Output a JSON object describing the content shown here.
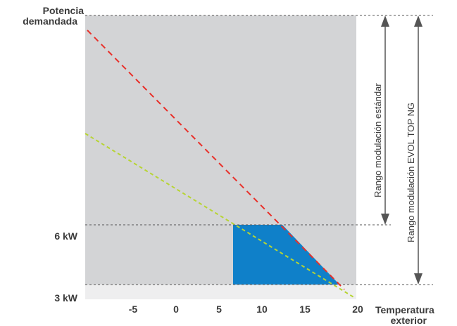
{
  "chart_data": {
    "type": "line",
    "y_axis_title": [
      "Potencia",
      "demandada"
    ],
    "x_axis_title": [
      "Temperatura",
      "exterior"
    ],
    "x_ticks": [
      "-5",
      "0",
      "5",
      "10",
      "15",
      "20"
    ],
    "y_ticks": [
      "6 kW",
      "3 kW"
    ],
    "x_range": [
      -10,
      20
    ],
    "lines": [
      {
        "style": "dashed",
        "color": "#e8302a",
        "from": [
          -10,
          "top"
        ],
        "to": [
          19.5,
          "min"
        ]
      },
      {
        "style": "dashed",
        "color": "#b7d433",
        "from": [
          -10,
          "mid"
        ],
        "to": [
          19.5,
          "min"
        ]
      }
    ],
    "range_labels": [
      "Rango modulación estándar",
      "Rango modulación EVOL TOP NG"
    ],
    "colors": {
      "plot_background": "#d3d4d6",
      "below_min_band": "#eeeeef",
      "modulation_area": "#0f80c9",
      "red_line": "#e8302a",
      "green_line": "#b7d433",
      "arrow": "#555555",
      "guide_lines": "#555555"
    }
  }
}
